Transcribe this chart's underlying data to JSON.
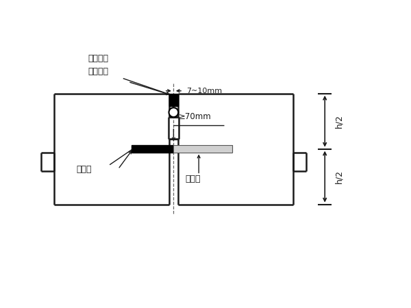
{
  "bg_color": "#ffffff",
  "line_color": "#1a1a1a",
  "figure_size": [
    6.0,
    4.5
  ],
  "dpi": 100,
  "label_7_10mm": "7~10mm",
  "label_70mm": "≥70mm",
  "label_fill": "灌填缝料",
  "label_backing": "背衬履条",
  "label_asphalt": "涂沥青",
  "label_dowel": "传力杆",
  "label_h2_top": "h/2",
  "label_h2_bot": "h/2"
}
